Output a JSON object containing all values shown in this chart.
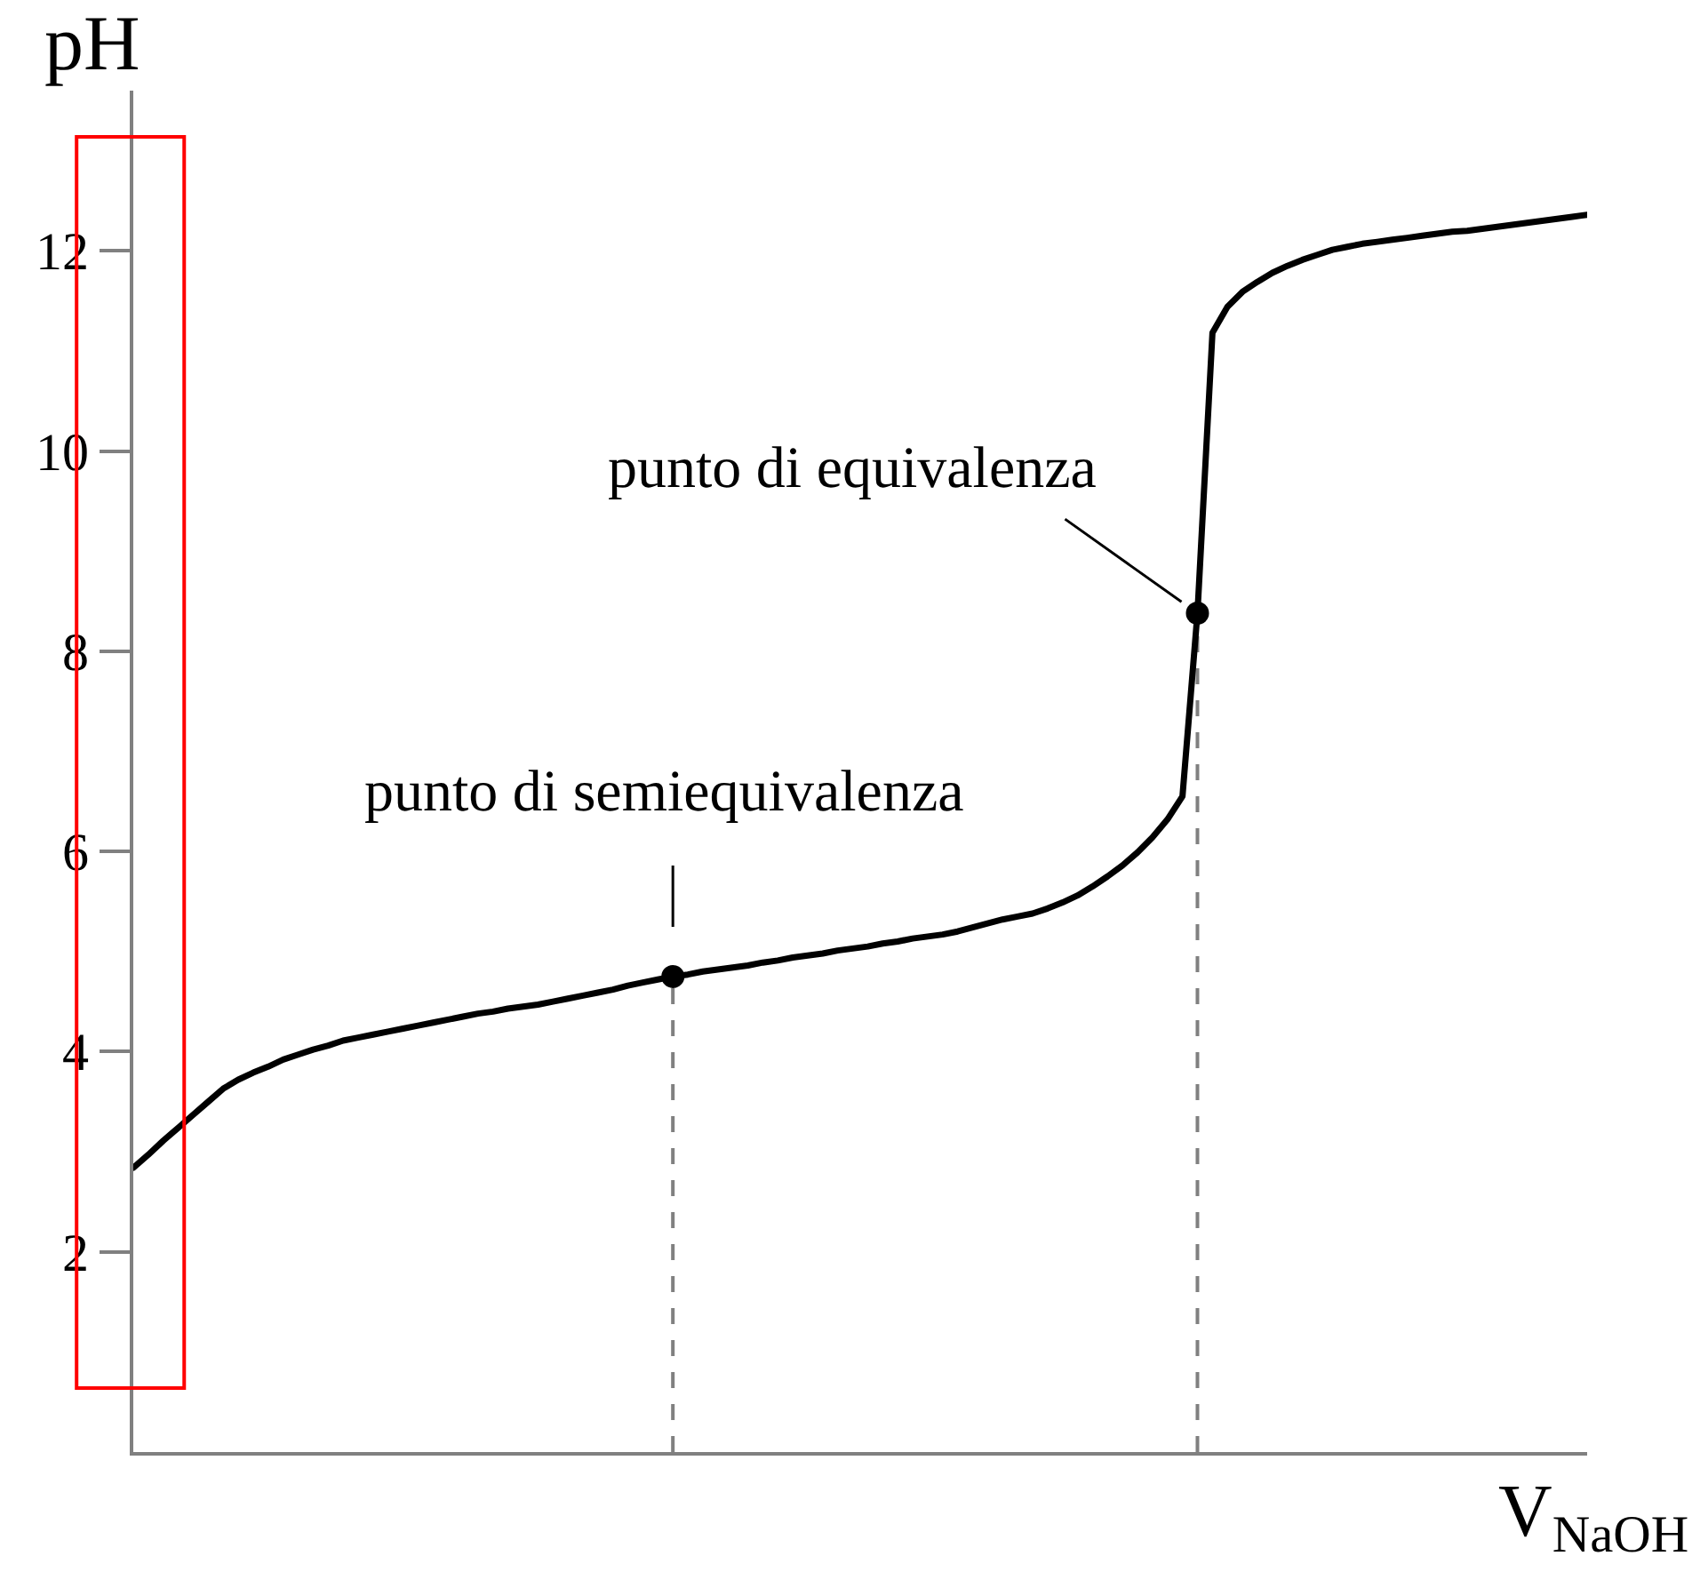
{
  "chart_data": {
    "type": "line",
    "xlabel": "V$_{NaOH}$",
    "ylabel": "pH",
    "categories": [
      null,
      null,
      null,
      null,
      null,
      null,
      null,
      null,
      null,
      null,
      null,
      null,
      null,
      null,
      null,
      null,
      null,
      null,
      null,
      null,
      null,
      null,
      null,
      null,
      null,
      null,
      null,
      null,
      null,
      null,
      null,
      null,
      null,
      null,
      null,
      null,
      null,
      null,
      null,
      null,
      null,
      null,
      null,
      null,
      null,
      null,
      null,
      null,
      null,
      null,
      null,
      null,
      null,
      null,
      null,
      null,
      null,
      null,
      null,
      null,
      null,
      null,
      null,
      null,
      null,
      null,
      null,
      null,
      null,
      null,
      null,
      null,
      null,
      null,
      null,
      null,
      null,
      null,
      null,
      null,
      null,
      null,
      null,
      null,
      null,
      null,
      null,
      null,
      null,
      null,
      null,
      null,
      null,
      null,
      null,
      null,
      null,
      null
    ],
    "series": [
      {
        "color": "#000000",
        "values": [
          2.84,
          2.97,
          3.11,
          3.24,
          3.37,
          3.5,
          3.63,
          3.72,
          3.79,
          3.85,
          3.92,
          3.97,
          4.02,
          4.06,
          4.11,
          4.14,
          4.17,
          4.2,
          4.23,
          4.26,
          4.29,
          4.32,
          4.35,
          4.38,
          4.4,
          4.43,
          4.45,
          4.47,
          4.5,
          4.53,
          4.56,
          4.59,
          4.62,
          4.66,
          4.69,
          4.72,
          4.75,
          4.77,
          4.8,
          4.82,
          4.84,
          4.86,
          4.89,
          4.91,
          4.94,
          4.96,
          4.98,
          5.01,
          5.03,
          5.05,
          5.08,
          5.1,
          5.13,
          5.15,
          5.17,
          5.2,
          5.24,
          5.28,
          5.32,
          5.35,
          5.38,
          5.43,
          5.49,
          5.56,
          5.65,
          5.75,
          5.86,
          5.99,
          6.14,
          6.32,
          6.55,
          8.38,
          11.18,
          11.44,
          11.59,
          11.69,
          11.78,
          11.85,
          11.91,
          11.96,
          12.01,
          12.04,
          12.07,
          12.09,
          12.11,
          12.13,
          12.15,
          12.17,
          12.19,
          12.2,
          12.22,
          12.24,
          12.26,
          12.28,
          12.3,
          12.32,
          12.34,
          12.36
        ]
      },
      {
        "type": "scatter",
        "color": "#000000",
        "marker": "circle",
        "values": [
          null,
          null,
          null,
          null,
          null,
          null,
          null,
          null,
          null,
          null,
          null,
          null,
          null,
          null,
          null,
          null,
          null,
          null,
          null,
          null,
          null,
          null,
          null,
          null,
          null,
          null,
          null,
          null,
          null,
          null,
          null,
          null,
          null,
          null,
          null,
          null,
          4.75,
          null,
          null,
          null,
          null,
          null,
          null,
          null,
          null,
          null,
          null,
          null,
          null,
          null,
          null,
          null,
          null,
          null,
          null,
          null,
          null,
          null,
          null,
          null,
          null,
          null,
          null,
          null,
          null,
          null,
          null,
          null,
          null,
          null,
          null,
          8.38,
          null,
          null,
          null,
          null,
          null,
          null,
          null,
          null,
          null,
          null,
          null,
          null,
          null,
          null,
          null,
          null,
          null,
          null,
          null,
          null,
          null,
          null,
          null,
          null,
          null,
          null
        ]
      }
    ],
    "ylim": [
      0,
      13.6
    ],
    "yticks": [
      2,
      4,
      6,
      8,
      10,
      12
    ],
    "tick_labels": "y",
    "annotations": [
      "punto di semiequivalenza",
      "punto di equivalenza"
    ]
  }
}
